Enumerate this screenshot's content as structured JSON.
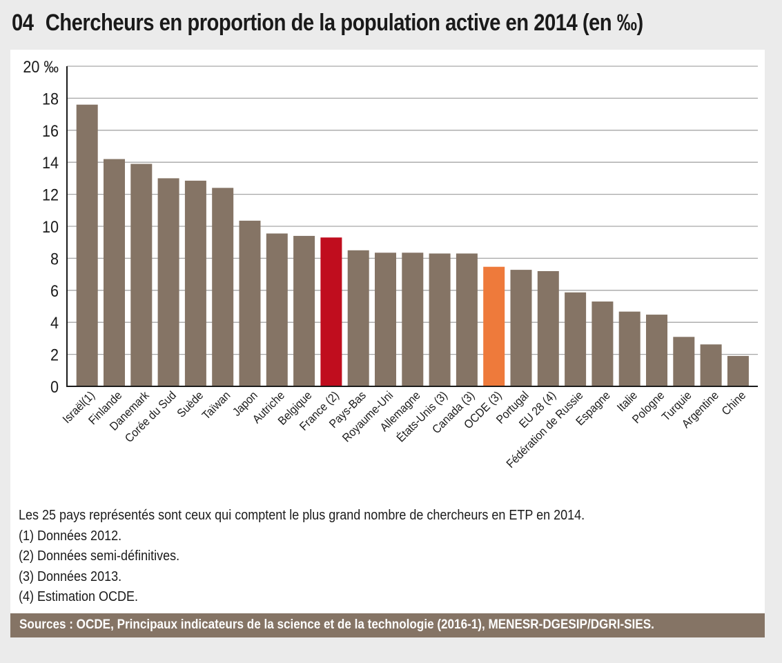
{
  "header": {
    "number": "04",
    "title": "Chercheurs en proportion de la population active en 2014 (en ‰)"
  },
  "colors": {
    "default_bar": "#857465",
    "highlight_france": "#c00d1e",
    "highlight_ocde": "#ee7a3b",
    "background": "#ebebeb",
    "source_bar": "#857465"
  },
  "chart_data": {
    "type": "bar",
    "title": "Chercheurs en proportion de la population active en 2014 (en ‰)",
    "xlabel": "",
    "ylabel": "‰",
    "ylim": [
      0,
      20
    ],
    "yticks": [
      0,
      2,
      4,
      6,
      8,
      10,
      12,
      14,
      16,
      18,
      20
    ],
    "ytick_labels": [
      "0",
      "2",
      "4",
      "6",
      "8",
      "10",
      "12",
      "14",
      "16",
      "18",
      "20 ‰"
    ],
    "grid": true,
    "legend": "none",
    "categories": [
      "Israël(1)",
      "Finlande",
      "Danemark",
      "Corée du Sud",
      "Suède",
      "Taïwan",
      "Japon",
      "Autriche",
      "Belgique",
      "France (2)",
      "Pays-Bas",
      "Royaume-Uni",
      "Allemagne",
      "États-Unis (3)",
      "Canada (3)",
      "OCDE (3)",
      "Portugal",
      "EU 28 (4)",
      "Fédération de Russie",
      "Espagne",
      "Italie",
      "Pologne",
      "Turquie",
      "Argentine",
      "Chine"
    ],
    "values": [
      17.6,
      14.2,
      13.9,
      13.0,
      12.85,
      12.4,
      10.35,
      9.55,
      9.4,
      9.3,
      8.5,
      8.35,
      8.35,
      8.3,
      8.3,
      7.47,
      7.28,
      7.2,
      5.87,
      5.3,
      4.67,
      4.48,
      3.09,
      2.62,
      1.9
    ],
    "highlights": {
      "France (2)": "highlight_france",
      "OCDE (3)": "highlight_ocde"
    }
  },
  "notes": [
    "Les 25 pays représentés sont ceux qui comptent le plus grand nombre de chercheurs en ETP en 2014.",
    "(1) Données 2012.",
    "(2) Données semi-définitives.",
    "(3) Données 2013.",
    "(4) Estimation OCDE."
  ],
  "source": "Sources : OCDE, Principaux indicateurs de la science et de la technologie (2016-1), MENESR-DGESIP/DGRI-SIES."
}
